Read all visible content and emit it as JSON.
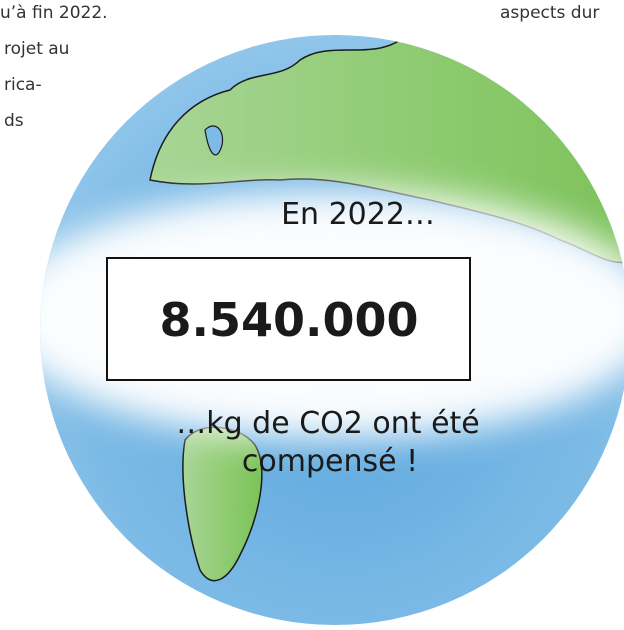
{
  "left_text": {
    "lines": [
      "u’à fin 2022.",
      "rojet au",
      "rica-",
      "ds"
    ]
  },
  "right_text": "aspects dur",
  "globe": {
    "heading": "En 2022…",
    "figure": "8.540.000",
    "caption_lines": [
      "…kg de CO2 ont été",
      "compensé !"
    ]
  }
}
